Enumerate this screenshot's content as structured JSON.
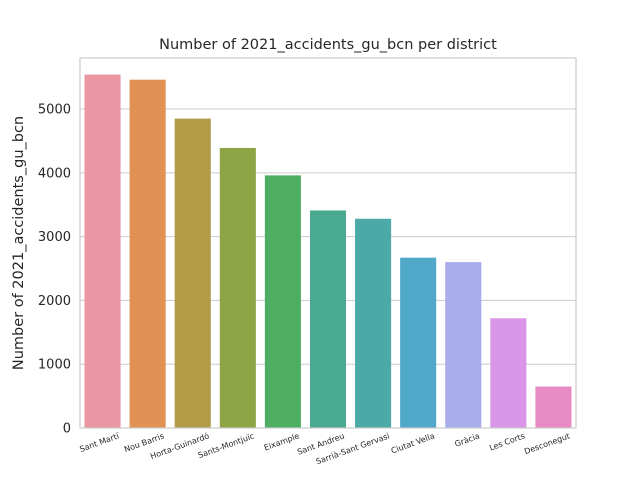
{
  "chart_data": {
    "type": "bar",
    "title": "Number of 2021_accidents_gu_bcn per district",
    "xlabel": "",
    "ylabel": "Number of 2021_accidents_gu_bcn",
    "categories": [
      "Sant Martí",
      "Nou Barris",
      "Horta-Guinardó",
      "Sants-Montjuïc",
      "Eixample",
      "Sant Andreu",
      "Sarrià-Sant Gervasi",
      "Ciutat Vella",
      "Gràcia",
      "Les Corts",
      "Desconegut"
    ],
    "values": [
      5540,
      5460,
      4850,
      4390,
      3960,
      3410,
      3280,
      2670,
      2600,
      1720,
      650
    ],
    "ylim": [
      0,
      5800
    ],
    "yticks": [
      0,
      1000,
      2000,
      3000,
      4000,
      5000
    ],
    "ytick_labels": [
      "0",
      "1000",
      "2000",
      "3000",
      "4000",
      "5000"
    ],
    "grid": "horizontal",
    "colors": [
      "#ea96a3",
      "#e19153",
      "#b19b47",
      "#8ea546",
      "#4eae62",
      "#49aa91",
      "#4ba9a8",
      "#50a9c8",
      "#a8acea",
      "#d995e8",
      "#e88bc4"
    ]
  }
}
